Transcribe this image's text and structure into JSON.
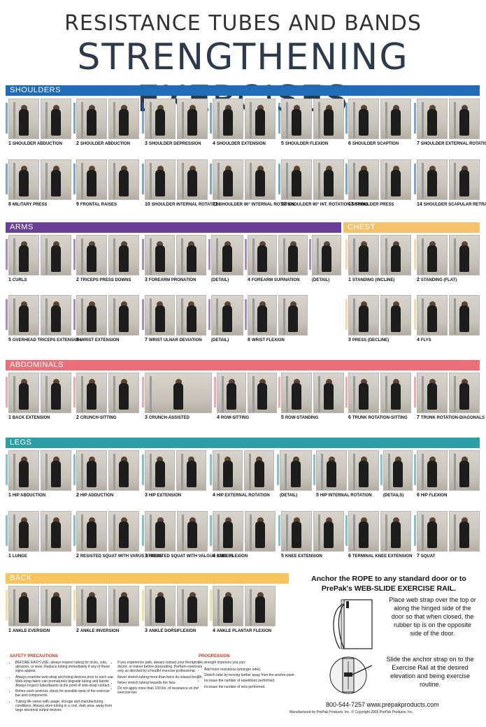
{
  "title": {
    "line1": "RESISTANCE TUBES AND BANDS",
    "line2": "STRENGTHENING EXERCISES"
  },
  "colors": {
    "shoulders": "#1f6bb8",
    "arms": "#6a3f98",
    "chest": "#f5c26b",
    "abdominals": "#ea6f78",
    "legs": "#2a9fa5",
    "back": "#f6c35c"
  },
  "sections": {
    "shoulders": "SHOULDERS",
    "arms": "ARMS",
    "chest": "CHEST",
    "abdominals": "ABDOMINALS",
    "legs": "LEGS",
    "back": "BACK"
  },
  "captions": {
    "shoulders": [
      {
        "num": "1",
        "name": "SHOULDER ABDUCTION"
      },
      {
        "num": "2",
        "name": "SHOULDER ABDUCTION"
      },
      {
        "num": "3",
        "name": "SHOULDER DEPRESSION"
      },
      {
        "num": "4",
        "name": "SHOULDER EXTENSION"
      },
      {
        "num": "5",
        "name": "SHOULDER FLEXION"
      },
      {
        "num": "6",
        "name": "SHOULDER SCAPTION"
      },
      {
        "num": "7",
        "name": "SHOULDER EXTERNAL ROTATION-SITTING"
      },
      {
        "num": "8",
        "name": "MILITARY PRESS"
      },
      {
        "num": "9",
        "name": "FRONTAL RAISES"
      },
      {
        "num": "10",
        "name": "SHOULDER INTERNAL ROTATION"
      },
      {
        "num": "11",
        "name": "SHOULDER 90° INTERNAL ROTATION"
      },
      {
        "num": "12",
        "name": "SHOULDER 90° INT. ROTATION-SITTING"
      },
      {
        "num": "13",
        "name": "SHOULDER PRESS"
      },
      {
        "num": "14",
        "name": "SHOULDER SCAPULAR RETRACTION"
      }
    ],
    "arms": [
      {
        "num": "1",
        "name": "CURLS"
      },
      {
        "num": "2",
        "name": "TRICEPS PRESS DOWNS"
      },
      {
        "num": "3",
        "name": "FOREARM PRONATION"
      },
      {
        "num": "",
        "name": "(DETAIL)"
      },
      {
        "num": "4",
        "name": "FOREARM SUPINATION"
      },
      {
        "num": "",
        "name": "(DETAIL)"
      },
      {
        "num": "5",
        "name": "OVERHEAD TRICEPS EXTENSION"
      },
      {
        "num": "6",
        "name": "WRIST EXTENSION"
      },
      {
        "num": "7",
        "name": "WRIST ULNAR DEVIATION"
      },
      {
        "num": "",
        "name": "(DETAIL)"
      },
      {
        "num": "8",
        "name": "WRIST FLEXION"
      }
    ],
    "chest": [
      {
        "num": "1",
        "name": "STANDING (INCLINE)"
      },
      {
        "num": "2",
        "name": "STANDING (FLAT)"
      },
      {
        "num": "3",
        "name": "PRESS (DECLINE)"
      },
      {
        "num": "4",
        "name": "FLYS"
      }
    ],
    "abdominals": [
      {
        "num": "1",
        "name": "BACK EXTENSION"
      },
      {
        "num": "2",
        "name": "CRUNCH-SITTING"
      },
      {
        "num": "3",
        "name": "CRUNCH-ASSISTED"
      },
      {
        "num": "4",
        "name": "ROW-SITTING"
      },
      {
        "num": "5",
        "name": "ROW-STANDING"
      },
      {
        "num": "6",
        "name": "TRUNK ROTATION-SITTING"
      },
      {
        "num": "7",
        "name": "TRUNK ROTATION-DIAGONALS"
      }
    ],
    "legs": [
      {
        "num": "1",
        "name": "HIP ABDUCTION"
      },
      {
        "num": "2",
        "name": "HIP ADDUCTION"
      },
      {
        "num": "3",
        "name": "HIP EXTENSION"
      },
      {
        "num": "4",
        "name": "HIP EXTERNAL ROTATION"
      },
      {
        "num": "",
        "name": "(DETAIL)"
      },
      {
        "num": "5",
        "name": "HIP INTERNAL ROTATION"
      },
      {
        "num": "",
        "name": "(DETAILS)"
      },
      {
        "num": "6",
        "name": "HIP FLEXION"
      },
      {
        "num": "1",
        "name": "LUNGE"
      },
      {
        "num": "2",
        "name": "RESISTED SQUAT WITH VARUS STRESS"
      },
      {
        "num": "3",
        "name": "RESISTED SQUAT WITH VALGUS STRESS"
      },
      {
        "num": "4",
        "name": "KNEE FLEXION"
      },
      {
        "num": "5",
        "name": "KNEE EXTENSION"
      },
      {
        "num": "6",
        "name": "TERMINAL KNEE EXTENSION"
      },
      {
        "num": "7",
        "name": "SQUAT"
      }
    ],
    "back": [
      {
        "num": "1",
        "name": "ANKLE EVERSION"
      },
      {
        "num": "2",
        "name": "ANKLE INVERSION"
      },
      {
        "num": "3",
        "name": "ANKLE DORSIFLEXION"
      },
      {
        "num": "4",
        "name": "ANKLE PLANTAR FLEXION"
      }
    ]
  },
  "anchor": {
    "title": "Anchor the ROPE to any standard door or to PrePak's WEB-SLIDE EXERCISE RAIL.",
    "step1": "Place web strap over the top or along the hinged side of the door so that when closed, the rubber tip is on the opposite side of the door.",
    "step2": "Slide the anchor strap on to the Exercise Rail at the desired elevation and being exercise routine."
  },
  "safety": {
    "heading": "SAFETY PRECAUTIONS",
    "col1": [
      "BEFORE EACH USE, always inspect tubing for nicks, cuts, abrasion, or wear. Replace tubing immediately if any of these signs appear.",
      "Always examine web-strap anchoring devices prior to each use. Web-strap fabric can prematurely degrade tubing and bands. Always inspect tubes/bands at the point of web-strap contact.",
      "Before each workout, check for possible wear of the exercise bar and components.",
      "Tubing life varies with usage, storage and manufacturing conditions. Always store tubing in a cool, dark area, away from large electrical output devices."
    ],
    "col2": [
      "If you experience pain, always contact your therapist, doctor, or trainer before proceeding. Perform exercises only as directed by a health/ exercise professional.",
      "Never stretch tubing more than twice its relaxed length.",
      "Never stretch tubing towards the face.",
      "Do not apply more than 100 lbs. of resistance on the exercise bar."
    ]
  },
  "progression": {
    "heading": "PROGRESSION",
    "intro": "As strength improves you can:",
    "items": [
      "Add more resistance (stronger tube).",
      "Stretch tube by moving farther away from the anchor point.",
      "Increase the number of repetitions performed.",
      "Increase the number of sets performed."
    ]
  },
  "footer": {
    "phone_web": "800-544-7257    www.prepakproducts.com",
    "copyright": "Manufactured by PrePak Products, Inc.  © Copyright 2005 PrePak Products, Inc."
  }
}
